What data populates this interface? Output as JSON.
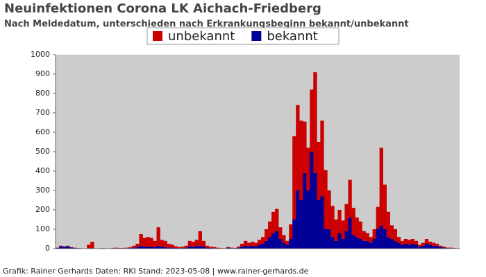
{
  "chart_data": {
    "type": "stacked_bar",
    "title": "Neuinfektionen Corona LK Aichach-Friedberg",
    "subtitle": "Nach Meldedatum, unterschieden nach Erkrankungsbeginn bekannt/unbekannt",
    "footer": "Grafik: Rainer Gerhards Daten: RKI Stand: 2023-05-08 | www.rainer-gerhards.de",
    "categories": [
      null,
      null,
      null,
      null,
      null,
      null,
      null,
      null,
      null,
      null,
      null,
      null,
      null,
      null,
      null,
      null,
      null,
      null,
      null,
      null,
      null,
      null,
      null,
      null,
      null,
      null,
      null,
      null,
      null,
      null,
      null,
      null,
      null,
      null,
      null,
      null,
      null,
      null,
      null,
      null,
      null,
      null,
      null,
      null,
      null,
      null,
      null,
      null,
      null,
      null,
      null,
      null,
      null,
      null,
      null,
      null,
      null,
      null,
      null,
      null,
      null,
      null,
      null,
      null,
      null,
      null,
      null,
      null,
      null,
      null,
      null,
      null,
      null,
      null,
      null,
      null,
      null,
      null,
      null,
      null,
      null,
      null,
      null,
      null,
      null,
      null,
      null,
      null,
      null,
      null,
      null,
      null,
      null,
      null,
      null,
      null,
      null,
      null,
      null,
      null,
      null,
      null,
      null,
      null,
      null,
      null,
      null,
      null,
      null,
      null,
      null,
      null,
      null,
      null,
      null,
      null
    ],
    "series": [
      {
        "name": "bekannt",
        "color": "#000099",
        "values": [
          4,
          12,
          10,
          12,
          6,
          4,
          2,
          1,
          0,
          2,
          3,
          0,
          0,
          2,
          0,
          1,
          2,
          3,
          2,
          2,
          3,
          4,
          5,
          8,
          15,
          10,
          10,
          10,
          8,
          15,
          10,
          8,
          5,
          5,
          4,
          3,
          4,
          5,
          12,
          10,
          12,
          15,
          10,
          5,
          4,
          3,
          2,
          1,
          1,
          5,
          3,
          2,
          5,
          10,
          15,
          12,
          15,
          12,
          20,
          25,
          40,
          60,
          80,
          90,
          50,
          30,
          20,
          50,
          150,
          300,
          250,
          390,
          300,
          500,
          390,
          250,
          270,
          100,
          100,
          60,
          40,
          80,
          50,
          90,
          160,
          70,
          60,
          50,
          40,
          40,
          30,
          50,
          100,
          120,
          100,
          60,
          50,
          40,
          30,
          20,
          25,
          20,
          25,
          20,
          10,
          15,
          25,
          20,
          15,
          15,
          8,
          5,
          3,
          3,
          2,
          1
        ]
      },
      {
        "name": "unbekannt",
        "color": "#cc0000",
        "values": [
          1,
          3,
          2,
          3,
          2,
          1,
          1,
          1,
          0,
          18,
          32,
          0,
          0,
          1,
          0,
          1,
          2,
          2,
          1,
          2,
          2,
          4,
          10,
          17,
          60,
          45,
          50,
          45,
          32,
          95,
          35,
          32,
          20,
          15,
          8,
          5,
          6,
          10,
          28,
          25,
          33,
          75,
          30,
          10,
          6,
          5,
          3,
          2,
          1,
          3,
          2,
          2,
          5,
          15,
          25,
          18,
          20,
          18,
          25,
          35,
          60,
          80,
          110,
          115,
          60,
          40,
          20,
          75,
          430,
          440,
          410,
          265,
          220,
          320,
          520,
          300,
          390,
          305,
          200,
          160,
          110,
          120,
          95,
          140,
          195,
          140,
          100,
          90,
          50,
          40,
          30,
          50,
          115,
          400,
          230,
          130,
          70,
          60,
          30,
          20,
          25,
          25,
          25,
          20,
          10,
          15,
          25,
          15,
          15,
          10,
          7,
          5,
          2,
          2,
          1,
          1
        ]
      }
    ],
    "legend_order": [
      1,
      0
    ],
    "ylim": [
      0,
      1000
    ],
    "yticks": [
      0,
      100,
      200,
      300,
      400,
      500,
      600,
      700,
      800,
      900,
      1000
    ],
    "background": "#cccccc"
  }
}
